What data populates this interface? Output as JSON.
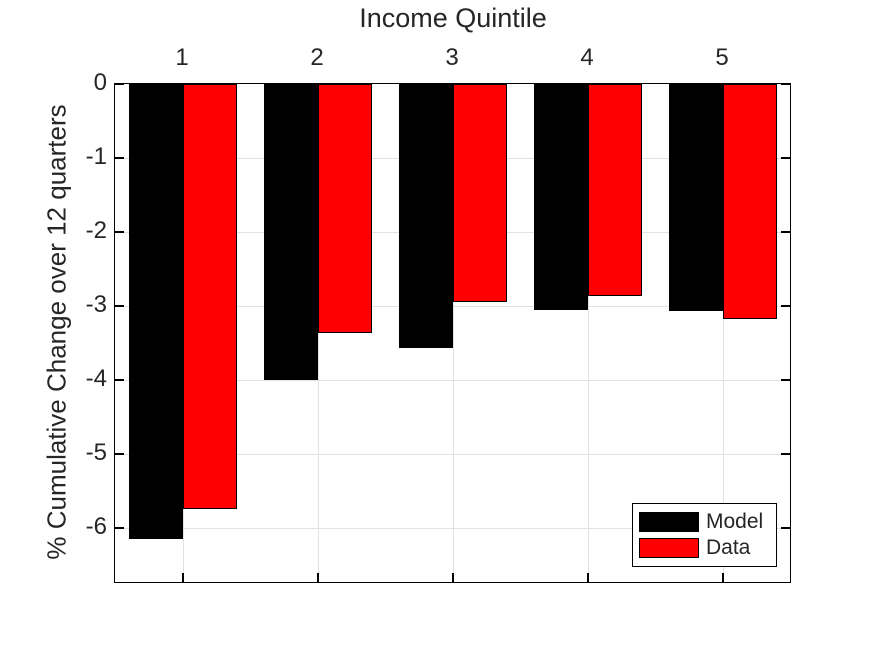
{
  "chart_data": {
    "type": "bar",
    "title": "Income Quintile",
    "xlabel": "Income Quintile",
    "ylabel": "% Cumulative Change over 12 quarters",
    "x_axis_location": "top",
    "categories": [
      "1",
      "2",
      "3",
      "4",
      "5"
    ],
    "series": [
      {
        "name": "Model",
        "color": "#000000",
        "values": [
          -6.15,
          -4.0,
          -3.57,
          -3.05,
          -3.07
        ]
      },
      {
        "name": "Data",
        "color": "#ff0000",
        "values": [
          -5.74,
          -3.36,
          -2.95,
          -2.87,
          -3.17
        ]
      }
    ],
    "y_ticks": [
      0,
      -1,
      -2,
      -3,
      -4,
      -5,
      -6
    ],
    "y_tick_labels": [
      "0",
      "-1",
      "-2",
      "-3",
      "-4",
      "-5",
      "-6"
    ],
    "ylim": [
      -6.73,
      0
    ],
    "grid": true,
    "tick_direction": "in",
    "legend_position": "bottom-right",
    "legend_entries": [
      "Model",
      "Data"
    ],
    "colors": {
      "model_bar": "#000000",
      "data_bar": "#ff0000",
      "bar_edge": "#000000",
      "grid": "#e2e2e2",
      "axis": "#000000",
      "text": "#262626",
      "background": "#ffffff"
    }
  }
}
